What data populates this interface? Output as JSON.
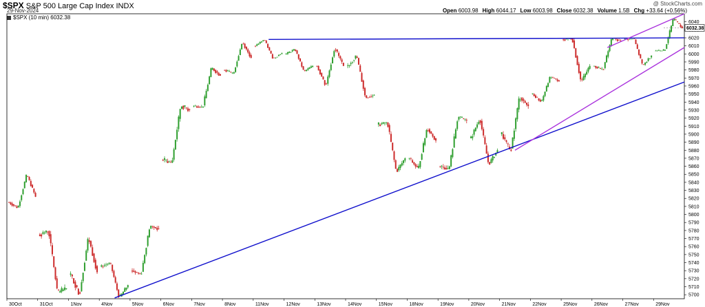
{
  "header": {
    "symbol": "$SPX",
    "name": "S&P 500 Large Cap Index",
    "exchange": "INDX",
    "date": "29-Nov-2024",
    "credit": "@ StockCharts.com",
    "legend": "$SPX (10 min) 6032.38",
    "quote": [
      {
        "label": "Open",
        "value": "6003.98"
      },
      {
        "label": "High",
        "value": "6044.17"
      },
      {
        "label": "Low",
        "value": "6003.98"
      },
      {
        "label": "Close",
        "value": "6032.38"
      },
      {
        "label": "Volume",
        "value": "1.5B"
      },
      {
        "label": "Chg",
        "value": "+33.64 (+0.56%)"
      }
    ]
  },
  "chart_data": {
    "type": "candlestick",
    "interval": "10 min",
    "last_value": 6032.38,
    "last_value_label": "6032.38",
    "ylim": [
      5695,
      6050
    ],
    "y_ticks": [
      5700,
      5710,
      5720,
      5730,
      5740,
      5750,
      5760,
      5770,
      5780,
      5790,
      5800,
      5810,
      5820,
      5830,
      5840,
      5850,
      5860,
      5870,
      5880,
      5890,
      5900,
      5910,
      5920,
      5930,
      5940,
      5950,
      5960,
      5970,
      5980,
      5990,
      6000,
      6010,
      6020,
      6030,
      6040
    ],
    "x_ticks": [
      "30Oct",
      "31Oct",
      "1Nov",
      "4Nov",
      "5Nov",
      "6Nov",
      "7Nov",
      "8Nov",
      "11Nov",
      "12Nov",
      "13Nov",
      "14Nov",
      "15Nov",
      "18Nov",
      "19Nov",
      "20Nov",
      "21Nov",
      "22Nov",
      "25Nov",
      "26Nov",
      "27Nov",
      "29Nov"
    ],
    "sessions": [
      {
        "date": "30Oct",
        "open": 5815,
        "high": 5850,
        "low": 5808,
        "close": 5822
      },
      {
        "date": "31Oct",
        "open": 5775,
        "high": 5780,
        "low": 5702,
        "close": 5708
      },
      {
        "date": "1Nov",
        "open": 5725,
        "high": 5772,
        "low": 5700,
        "close": 5728
      },
      {
        "date": "4Nov",
        "open": 5735,
        "high": 5740,
        "low": 5696,
        "close": 5712
      },
      {
        "date": "5Nov",
        "open": 5730,
        "high": 5786,
        "low": 5725,
        "close": 5782
      },
      {
        "date": "6Nov",
        "open": 5868,
        "high": 5936,
        "low": 5864,
        "close": 5930
      },
      {
        "date": "7Nov",
        "open": 5935,
        "high": 5983,
        "low": 5933,
        "close": 5973
      },
      {
        "date": "8Nov",
        "open": 5980,
        "high": 6015,
        "low": 5975,
        "close": 5995
      },
      {
        "date": "11Nov",
        "open": 6010,
        "high": 6018,
        "low": 5994,
        "close": 6001
      },
      {
        "date": "12Nov",
        "open": 6000,
        "high": 6006,
        "low": 5978,
        "close": 5985
      },
      {
        "date": "13Nov",
        "open": 5985,
        "high": 6008,
        "low": 5960,
        "close": 5985
      },
      {
        "date": "14Nov",
        "open": 5985,
        "high": 5998,
        "low": 5945,
        "close": 5949
      },
      {
        "date": "15Nov",
        "open": 5912,
        "high": 5915,
        "low": 5853,
        "close": 5870
      },
      {
        "date": "18Nov",
        "open": 5870,
        "high": 5908,
        "low": 5856,
        "close": 5892
      },
      {
        "date": "19Nov",
        "open": 5860,
        "high": 5922,
        "low": 5856,
        "close": 5917
      },
      {
        "date": "20Nov",
        "open": 5895,
        "high": 5920,
        "low": 5862,
        "close": 5880
      },
      {
        "date": "21Nov",
        "open": 5900,
        "high": 5947,
        "low": 5878,
        "close": 5935
      },
      {
        "date": "22Nov",
        "open": 5950,
        "high": 5972,
        "low": 5940,
        "close": 5966
      },
      {
        "date": "25Nov",
        "open": 6018,
        "high": 6020,
        "low": 5965,
        "close": 5985
      },
      {
        "date": "26Nov",
        "open": 5985,
        "high": 6020,
        "low": 5980,
        "close": 6016
      },
      {
        "date": "27Nov",
        "open": 6018,
        "high": 6020,
        "low": 5985,
        "close": 5998
      },
      {
        "date": "29Nov",
        "open": 6004,
        "high": 6044,
        "low": 6004,
        "close": 6032
      }
    ],
    "trendlines": [
      {
        "color": "#1010cc",
        "from": [
          "11Nov",
          6018
        ],
        "to": [
          "29Nov",
          6020
        ]
      },
      {
        "color": "#1010cc",
        "from": [
          "4Nov",
          5696
        ],
        "to": [
          "29Nov",
          5965
        ]
      },
      {
        "color": "#aa33dd",
        "from": [
          "21Nov",
          5880
        ],
        "to": [
          "29Nov",
          6008
        ]
      },
      {
        "color": "#aa33dd",
        "from": [
          "26Nov",
          6008
        ],
        "to": [
          "29Nov",
          6050
        ]
      }
    ],
    "colors": {
      "up": "#2e9e2e",
      "down": "#cc2a2a",
      "axis": "#000000",
      "grid": "#ffffff"
    }
  }
}
